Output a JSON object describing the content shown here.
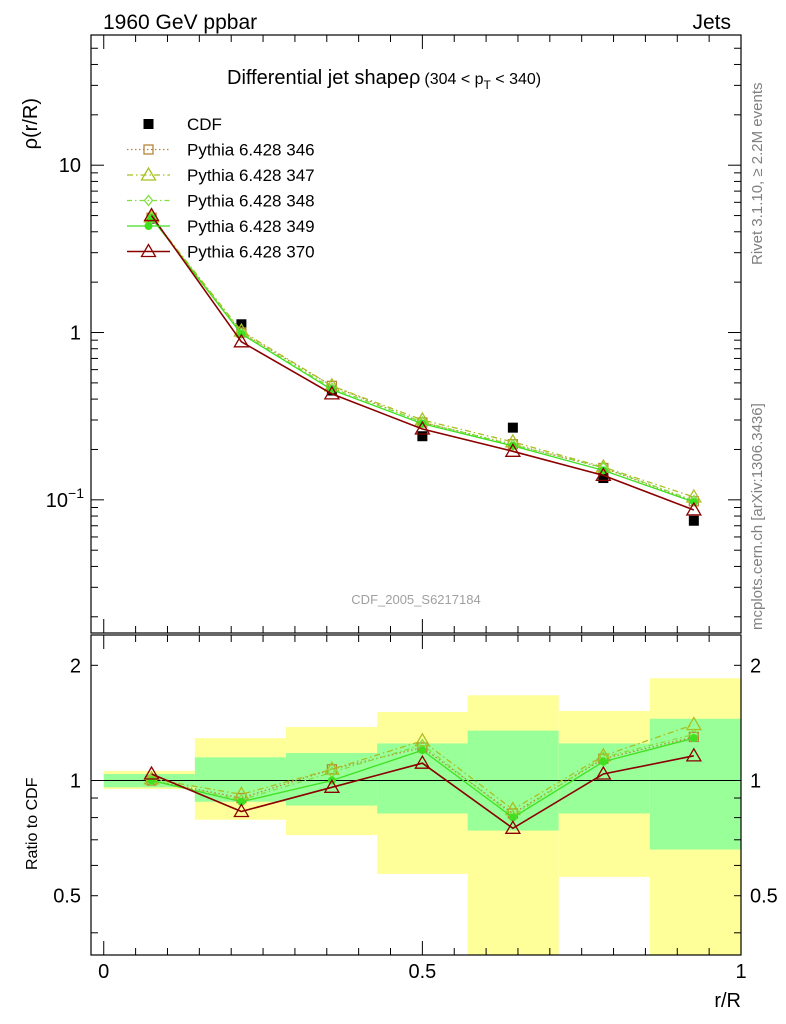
{
  "header": {
    "left": "1960 GeV ppbar",
    "right": "Jets",
    "title_main": "Differential jet shape",
    "title_rho": "ρ",
    "title_range": {
      "pre": "(304 < p",
      "sub": "T",
      "post": " < 340)"
    }
  },
  "side_text": {
    "rivet": "Rivet 3.1.10, ≥ 2.2M events",
    "mcplots": "mcplots.cern.ch [arXiv:1306.3436]"
  },
  "watermark": "CDF_2005_S6217184",
  "colors": {
    "data": "#000000",
    "p346": "#b8863b",
    "p347": "#a8c020",
    "p348": "#80e040",
    "p349": "#40e020",
    "p370": "#8b0000",
    "band_inner": "#99ff99",
    "band_outer": "#ffff99"
  },
  "chart_data": [
    {
      "type": "scatter",
      "ylabel": "ρ(r/R)",
      "xlim": [
        -0.02,
        1.0
      ],
      "ylim": [
        0.016,
        60
      ],
      "log_y": true,
      "y_ticks": [
        "10^-1",
        "1",
        "10"
      ],
      "x": [
        0.075,
        0.216,
        0.358,
        0.5,
        0.642,
        0.784,
        0.926
      ],
      "legend": {
        "placement": "top-left"
      },
      "series": [
        {
          "name": "CDF",
          "values": [
            4.8,
            1.12,
            0.45,
            0.24,
            0.27,
            0.135,
            0.075
          ],
          "marker": "square",
          "line": "none"
        },
        {
          "name": "Pythia 6.428 346",
          "values": [
            4.85,
            1.0,
            0.48,
            0.29,
            0.215,
            0.155,
            0.098
          ],
          "marker": "open-square",
          "line": "dotted"
        },
        {
          "name": "Pythia 6.428 347",
          "values": [
            4.9,
            1.02,
            0.48,
            0.3,
            0.222,
            0.157,
            0.104
          ],
          "marker": "open-triangle",
          "line": "dash-dot"
        },
        {
          "name": "Pythia 6.428 348",
          "values": [
            4.85,
            0.99,
            0.465,
            0.292,
            0.213,
            0.156,
            0.099
          ],
          "marker": "open-diamond",
          "line": "dashed"
        },
        {
          "name": "Pythia 6.428 349",
          "values": [
            4.83,
            0.98,
            0.455,
            0.285,
            0.21,
            0.15,
            0.097
          ],
          "marker": "filled-circle",
          "line": "solid"
        },
        {
          "name": "Pythia 6.428 370",
          "values": [
            5.0,
            0.88,
            0.43,
            0.265,
            0.195,
            0.14,
            0.087
          ],
          "marker": "open-triangle",
          "line": "solid"
        }
      ]
    },
    {
      "type": "line",
      "ylabel": "Ratio to CDF",
      "xlabel": "r/R",
      "xlim": [
        -0.02,
        1.0
      ],
      "ylim": [
        0.35,
        2.4
      ],
      "log_y": true,
      "x_ticks": [
        "0",
        "0.5",
        "1"
      ],
      "y_ticks": [
        "0.5",
        "1",
        "2"
      ],
      "reference_line": 1.0,
      "bins": [
        [
          0.0,
          0.143
        ],
        [
          0.143,
          0.286
        ],
        [
          0.286,
          0.429
        ],
        [
          0.429,
          0.571
        ],
        [
          0.571,
          0.714
        ],
        [
          0.714,
          0.857
        ],
        [
          0.857,
          1.0
        ]
      ],
      "band_inner": [
        [
          0.96,
          1.04
        ],
        [
          0.88,
          1.15
        ],
        [
          0.86,
          1.18
        ],
        [
          0.82,
          1.25
        ],
        [
          0.74,
          1.35
        ],
        [
          0.82,
          1.25
        ],
        [
          0.66,
          1.45
        ]
      ],
      "band_outer": [
        [
          0.95,
          1.06
        ],
        [
          0.79,
          1.29
        ],
        [
          0.72,
          1.38
        ],
        [
          0.57,
          1.51
        ],
        [
          0.33,
          1.67
        ],
        [
          0.56,
          1.52
        ],
        [
          0.33,
          1.85
        ]
      ],
      "x": [
        0.075,
        0.216,
        0.358,
        0.5,
        0.642,
        0.784,
        0.926
      ],
      "series": [
        {
          "name": "Pythia 6.428 346",
          "values": [
            1.0,
            0.9,
            1.07,
            1.22,
            0.82,
            1.14,
            1.3
          ]
        },
        {
          "name": "Pythia 6.428 347",
          "values": [
            1.01,
            0.92,
            1.07,
            1.27,
            0.84,
            1.16,
            1.4
          ]
        },
        {
          "name": "Pythia 6.428 348",
          "values": [
            1.0,
            0.89,
            1.05,
            1.24,
            0.81,
            1.15,
            1.32
          ]
        },
        {
          "name": "Pythia 6.428 349",
          "values": [
            1.0,
            0.88,
            1.0,
            1.2,
            0.8,
            1.12,
            1.29
          ]
        },
        {
          "name": "Pythia 6.428 370",
          "values": [
            1.04,
            0.83,
            0.96,
            1.11,
            0.75,
            1.04,
            1.16
          ]
        }
      ]
    }
  ]
}
